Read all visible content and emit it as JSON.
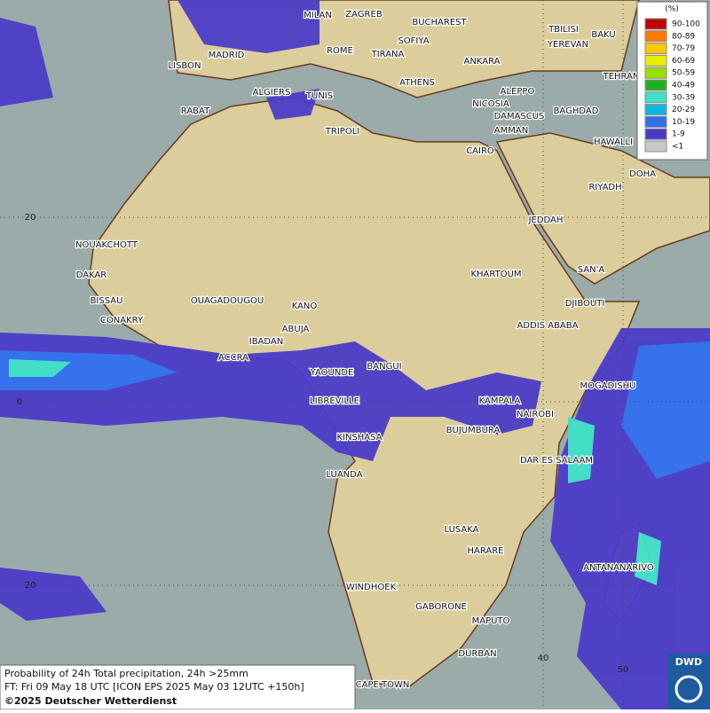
{
  "map": {
    "cities": [
      "MILAN",
      "ZAGREB",
      "BUCHAREST",
      "TBILISI",
      "BAKU",
      "MADRID",
      "ROME",
      "SOFIYA",
      "TIRANA",
      "ANKARA",
      "YEREVAN",
      "LISBON",
      "ATHENS",
      "TEHRAN",
      "ALGIERS",
      "TUNIS",
      "ALEPPO",
      "RABAT",
      "NICOSIA",
      "BAGHDAD",
      "DAMASCUS",
      "AMMAN",
      "TRIPOLI",
      "HAWALLI",
      "CAIRO",
      "DOHA",
      "RIYADH",
      "NOUAKCHOTT",
      "JEDDAH",
      "DAKAR",
      "KHARTOUM",
      "SAN'A",
      "BISSAU",
      "OUAGADOUGOU",
      "KANO",
      "DJIBOUTI",
      "CONAKRY",
      "ABUJA",
      "ADDIS ABABA",
      "IBADAN",
      "ACCRA",
      "BANGUI",
      "YAOUNDE",
      "MOGADISHU",
      "LIBREVILLE",
      "KAMPALA",
      "NAIROBI",
      "BUJUMBURA",
      "KINSHASA",
      "DAR ES SALAAM",
      "LUANDA",
      "LUSAKA",
      "HARARE",
      "ANTANANARIVO",
      "WINDHOEK",
      "GABORONE",
      "MAPUTO",
      "DURBAN",
      "CAPE TOWN"
    ],
    "grid_labels": [
      "20",
      "0",
      "20",
      "40",
      "50"
    ],
    "legend": {
      "unit": "(%)",
      "items": [
        {
          "label": "90-100",
          "color": "#c00000"
        },
        {
          "label": "80-89",
          "color": "#ff7800"
        },
        {
          "label": "70-79",
          "color": "#ffc800"
        },
        {
          "label": "60-69",
          "color": "#e8f000"
        },
        {
          "label": "50-59",
          "color": "#98e000"
        },
        {
          "label": "40-49",
          "color": "#20b020"
        },
        {
          "label": "30-39",
          "color": "#40e0c8"
        },
        {
          "label": "20-29",
          "color": "#10b8e0"
        },
        {
          "label": "10-19",
          "color": "#3070f0"
        },
        {
          "label": "1-9",
          "color": "#4b3cc8"
        },
        {
          "label": "<1",
          "color": "#c8c8c8"
        }
      ]
    },
    "footer": [
      "Probability of 24h Total precipitation, 24h >25mm",
      "FT: Fri 09 May 18 UTC [ICON EPS 2025 May 03 12UTC +150h]",
      "©2025 Deutscher Wetterdienst"
    ],
    "logo": "DWD"
  }
}
